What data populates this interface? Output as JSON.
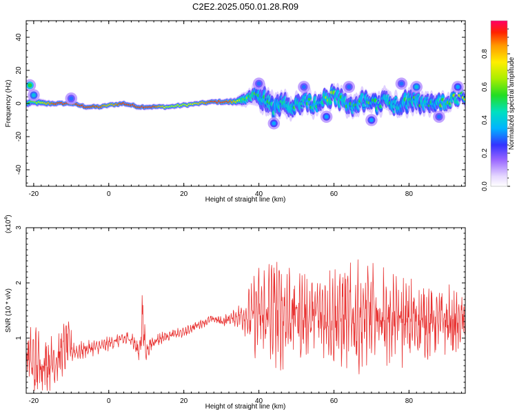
{
  "figure_title": "C2E2.2025.050.01.28.R09",
  "chart_data": [
    {
      "type": "heatmap",
      "title": "C2E2.2025.050.01.28.R09",
      "xlabel": "Height of straight line (km)",
      "ylabel": "Frequency (Hz)",
      "xlim": [
        -22,
        95
      ],
      "ylim": [
        -50,
        50
      ],
      "x_ticks": [
        -20,
        0,
        20,
        40,
        60,
        80
      ],
      "y_ticks": [
        -40,
        -20,
        0,
        20,
        40
      ],
      "x_tick_labels": [
        "-20",
        "0",
        "20",
        "40",
        "60",
        "80"
      ],
      "y_tick_labels": [
        "-40",
        "-20",
        "0",
        "20",
        "40"
      ],
      "colorbar": {
        "label": "Normalized spectral amplitude",
        "range": [
          0,
          1
        ],
        "ticks": [
          0,
          0.2,
          0.4,
          0.6,
          0.8
        ],
        "tick_labels": [
          "0.0",
          "0.2",
          "0.4",
          "0.6",
          "0.8"
        ]
      },
      "ridge": {
        "x": [
          -22,
          -20,
          -17,
          -14,
          -10,
          -6,
          -2,
          0,
          4,
          8,
          12,
          16,
          20,
          24,
          28,
          32,
          34,
          36,
          38,
          40,
          42,
          44,
          46,
          48,
          50,
          52,
          54,
          56,
          58,
          60,
          62,
          64,
          66,
          68,
          70,
          72,
          74,
          76,
          78,
          80,
          82,
          84,
          86,
          88,
          90,
          92,
          94
        ],
        "y": [
          0,
          1,
          0,
          0,
          0,
          -2,
          -2,
          -1,
          0,
          -2,
          -2,
          -2,
          -1,
          0,
          1,
          1,
          1,
          4,
          6,
          5,
          0,
          -3,
          1,
          -2,
          0,
          2,
          -1,
          0,
          3,
          5,
          1,
          0,
          -1,
          2,
          0,
          -1,
          3,
          0,
          -3,
          2,
          3,
          -2,
          0,
          1,
          -1,
          2,
          5
        ],
        "peak": [
          0.6,
          0.6,
          0.8,
          0.95,
          0.95,
          0.95,
          0.9,
          0.8,
          0.95,
          0.95,
          0.95,
          0.7,
          0.7,
          0.8,
          0.95,
          0.95,
          0.8,
          0.6,
          0.6,
          0.55,
          0.5,
          0.5,
          0.45,
          0.5,
          0.55,
          0.45,
          0.5,
          0.5,
          0.6,
          0.6,
          0.5,
          0.5,
          0.5,
          0.5,
          0.55,
          0.5,
          0.5,
          0.45,
          0.5,
          0.5,
          0.5,
          0.5,
          0.5,
          0.5,
          0.55,
          0.6,
          0.7
        ],
        "spread_hz": [
          3,
          3,
          2.5,
          2,
          2,
          2,
          2,
          2,
          2,
          2,
          2,
          2,
          2,
          2,
          2,
          2.5,
          3,
          5,
          6,
          8,
          9,
          9,
          8,
          8,
          8,
          7,
          7,
          7,
          7,
          7,
          7,
          7,
          7,
          7,
          7,
          7,
          7,
          8,
          8,
          8,
          8,
          7,
          7,
          7,
          6,
          6,
          5
        ]
      },
      "sidebands": [
        {
          "x": -21,
          "y": 11,
          "amp": 0.55
        },
        {
          "x": -20,
          "y": 5,
          "amp": 0.4
        },
        {
          "x": -10,
          "y": 3,
          "amp": 0.3
        },
        {
          "x": 40,
          "y": 12,
          "amp": 0.3
        },
        {
          "x": 44,
          "y": -12,
          "amp": 0.35
        },
        {
          "x": 52,
          "y": 10,
          "amp": 0.3
        },
        {
          "x": 58,
          "y": -8,
          "amp": 0.35
        },
        {
          "x": 64,
          "y": 10,
          "amp": 0.3
        },
        {
          "x": 70,
          "y": -10,
          "amp": 0.35
        },
        {
          "x": 78,
          "y": 12,
          "amp": 0.3
        },
        {
          "x": 82,
          "y": 10,
          "amp": 0.4
        },
        {
          "x": 88,
          "y": -8,
          "amp": 0.3
        },
        {
          "x": 93,
          "y": 10,
          "amp": 0.35
        }
      ]
    },
    {
      "type": "line",
      "xlabel": "Height of straight line (km)",
      "ylabel": "SNR (10 * v/v)",
      "y_multiplier_label": "(x10",
      "y_multiplier_exp": "4",
      "xlim": [
        -22,
        95
      ],
      "ylim": [
        0,
        3
      ],
      "x_ticks": [
        -20,
        0,
        20,
        40,
        60,
        80
      ],
      "y_ticks": [
        1,
        2,
        3
      ],
      "x_tick_labels": [
        "-20",
        "0",
        "20",
        "40",
        "60",
        "80"
      ],
      "y_tick_labels": [
        "1",
        "2",
        "3"
      ],
      "color": "#e8302f",
      "envelope": {
        "x": [
          -22,
          -20,
          -17,
          -14,
          -11,
          -9,
          -6,
          -2,
          2,
          6,
          8,
          9,
          10,
          12,
          16,
          20,
          24,
          28,
          30,
          34,
          36,
          38,
          40,
          44,
          48,
          52,
          56,
          60,
          64,
          68,
          72,
          76,
          80,
          84,
          88,
          92,
          95
        ],
        "center": [
          0.7,
          0.55,
          0.55,
          0.6,
          0.9,
          0.75,
          0.8,
          0.85,
          0.95,
          1.0,
          0.75,
          1.3,
          0.75,
          0.95,
          1.05,
          1.1,
          1.25,
          1.35,
          1.3,
          1.38,
          1.42,
          1.4,
          1.42,
          1.45,
          1.45,
          1.4,
          1.42,
          1.4,
          1.38,
          1.35,
          1.4,
          1.35,
          1.3,
          1.3,
          1.3,
          1.28,
          1.3
        ],
        "amplitude": [
          0.4,
          0.65,
          0.5,
          0.45,
          0.45,
          0.15,
          0.15,
          0.12,
          0.12,
          0.15,
          0.15,
          0.55,
          0.15,
          0.12,
          0.1,
          0.08,
          0.08,
          0.08,
          0.1,
          0.15,
          0.3,
          0.55,
          0.95,
          1.0,
          0.9,
          0.75,
          0.8,
          0.85,
          0.9,
          0.95,
          0.9,
          0.85,
          0.75,
          0.7,
          0.65,
          0.6,
          0.55
        ]
      }
    }
  ]
}
